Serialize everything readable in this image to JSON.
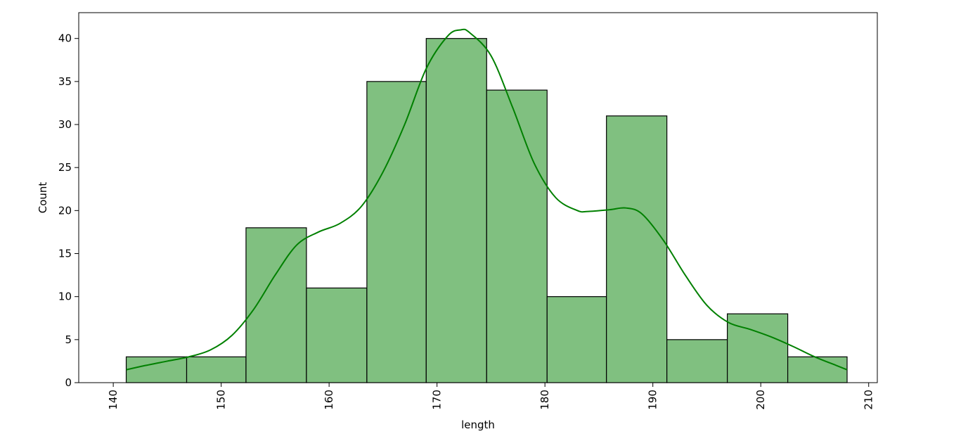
{
  "chart_data": {
    "type": "histogram",
    "title": "",
    "xlabel": "length",
    "ylabel": "Count",
    "xlim": [
      136.8,
      210.8
    ],
    "ylim": [
      0,
      43
    ],
    "x_ticks": [
      140,
      150,
      160,
      170,
      180,
      190,
      200,
      210
    ],
    "y_ticks": [
      0,
      5,
      10,
      15,
      20,
      25,
      30,
      35,
      40
    ],
    "grid": false,
    "bins": {
      "edges": [
        141.2,
        146.8,
        152.3,
        157.9,
        163.5,
        169.0,
        174.6,
        180.2,
        185.7,
        191.3,
        196.9,
        202.5,
        208.0
      ],
      "counts": [
        3,
        3,
        18,
        11,
        35,
        40,
        34,
        10,
        31,
        5,
        8,
        3
      ]
    },
    "kde": {
      "x": [
        141.2,
        143,
        145,
        147,
        149,
        151,
        153,
        155,
        157,
        159,
        161,
        163,
        165,
        167,
        169,
        171,
        172.2,
        173,
        175,
        177,
        179,
        181,
        183,
        184,
        186,
        187.5,
        189,
        191,
        193,
        195,
        197,
        199,
        201,
        203,
        205,
        207,
        208
      ],
      "y": [
        1.5,
        2.0,
        2.5,
        3.0,
        3.8,
        5.5,
        8.5,
        12.5,
        16.0,
        17.5,
        18.5,
        20.5,
        24.5,
        30.0,
        36.5,
        40.3,
        41.0,
        40.7,
        38.0,
        32.0,
        25.5,
        21.5,
        20.0,
        19.9,
        20.1,
        20.3,
        19.6,
        16.5,
        12.5,
        9.0,
        7.0,
        6.2,
        5.3,
        4.2,
        3.0,
        2.0,
        1.5
      ]
    },
    "colors": {
      "bar_fill": "#80c080",
      "bar_edge": "#000000",
      "kde_line": "#008000"
    }
  }
}
